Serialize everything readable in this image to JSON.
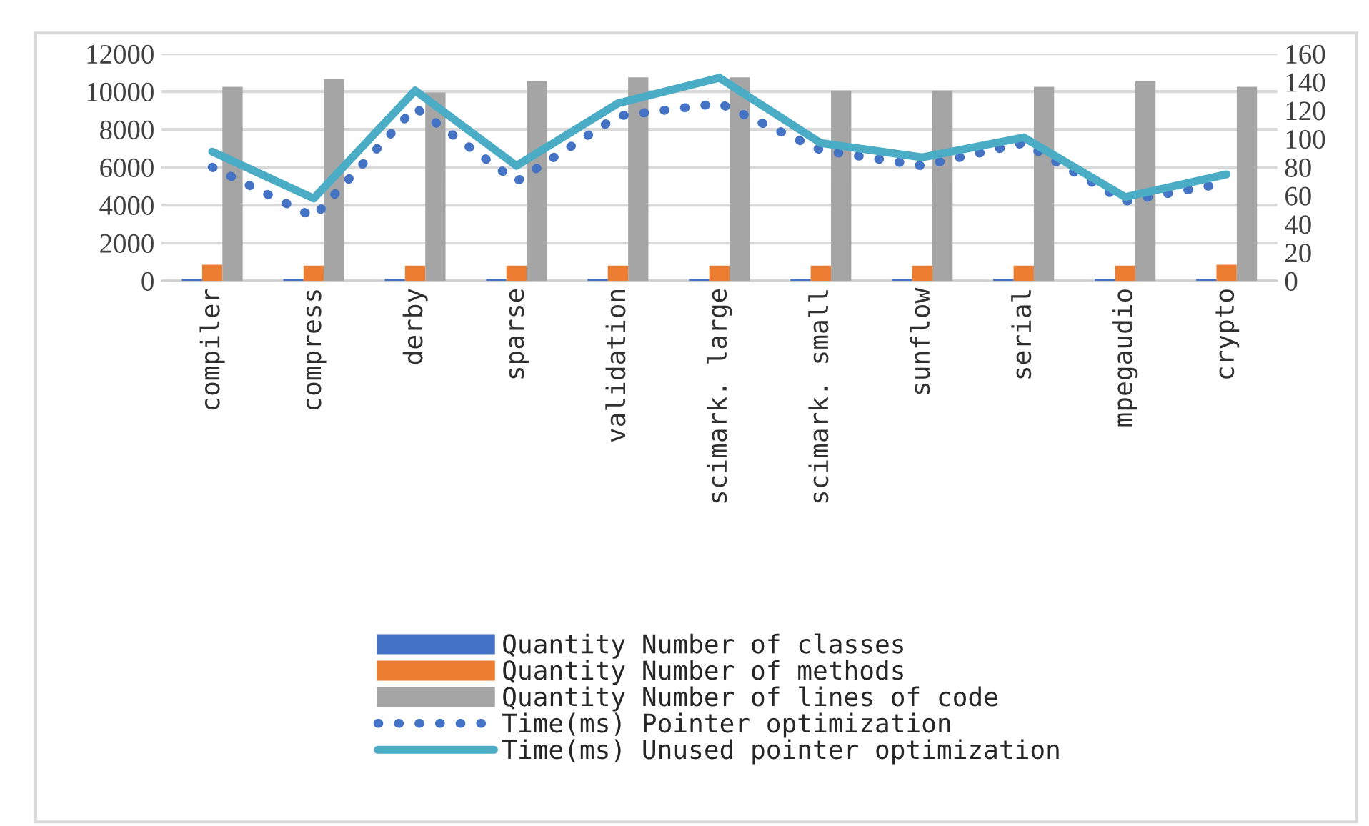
{
  "chart_data": {
    "type": "bar",
    "categories": [
      "compiler",
      "compress",
      "derby",
      "sparse",
      "validation",
      "scimark. large",
      "scimark. small",
      "sunflow",
      "serial",
      "mpegaudio",
      "crypto"
    ],
    "series": [
      {
        "name": "Quantity Number of classes",
        "color": "#4472c4",
        "values": [
          50,
          50,
          50,
          50,
          50,
          50,
          50,
          50,
          50,
          50,
          50
        ]
      },
      {
        "name": "Quantity Number of methods",
        "color": "#ed7d31",
        "values": [
          800,
          750,
          750,
          750,
          750,
          750,
          750,
          750,
          750,
          750,
          800
        ]
      },
      {
        "name": "Quantity Number of lines of code",
        "color": "#a5a5a5",
        "values": [
          10200,
          10600,
          9900,
          10500,
          10700,
          10700,
          10000,
          10000,
          10200,
          10500,
          10200
        ]
      },
      {
        "name": "Time(ms) Pointer optimization",
        "type": "line",
        "axis": "y2",
        "line_style": "dotted",
        "color": "#4472c4",
        "values": [
          80,
          45,
          122,
          70,
          116,
          125,
          92,
          81,
          97,
          56,
          69
        ]
      },
      {
        "name": "Time(ms) Unused pointer optimization",
        "type": "line",
        "axis": "y2",
        "line_style": "solid",
        "color": "#4bacc6",
        "values": [
          91,
          58,
          134,
          81,
          125,
          143,
          97,
          87,
          101,
          59,
          75
        ]
      }
    ],
    "ylim": [
      0,
      12000
    ],
    "yticks": [
      0,
      2000,
      4000,
      6000,
      8000,
      10000,
      12000
    ],
    "y2lim": [
      0,
      160
    ],
    "y2ticks": [
      0,
      20,
      40,
      60,
      80,
      100,
      120,
      140,
      160
    ],
    "grid": "y",
    "legend": "bottom"
  }
}
